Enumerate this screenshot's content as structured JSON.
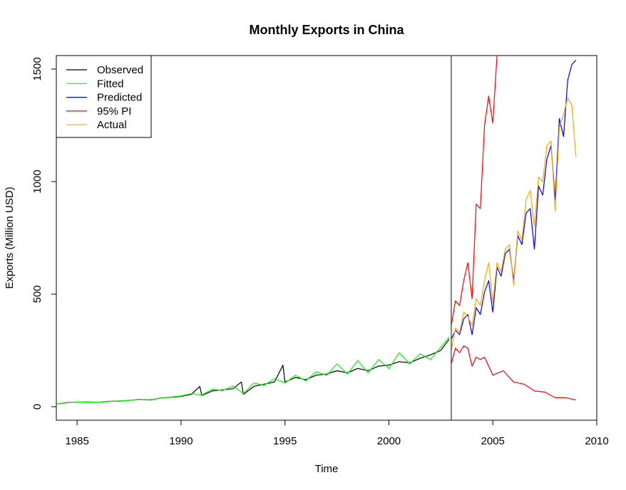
{
  "chart_data": {
    "type": "line",
    "title": "Monthly Exports in China",
    "xlabel": "Time",
    "ylabel": "Exports (Million USD)",
    "xlim": [
      1984,
      2010
    ],
    "ylim": [
      -60,
      1560
    ],
    "x_ticks": [
      "1985",
      "1990",
      "1995",
      "2000",
      "2005",
      "2010"
    ],
    "y_ticks": [
      "0",
      "500",
      "1000",
      "1500"
    ],
    "grid": false,
    "legend": "top-left",
    "forecast_start": 2003.0,
    "series": [
      {
        "name": "Observed",
        "color": "#000000",
        "x": [
          1984.0,
          1984.5,
          1985.0,
          1985.5,
          1986.0,
          1986.5,
          1987.0,
          1987.5,
          1988.0,
          1988.5,
          1989.0,
          1989.5,
          1990.0,
          1990.5,
          1990.9,
          1991.0,
          1991.5,
          1992.0,
          1992.5,
          1992.9,
          1993.0,
          1993.5,
          1994.0,
          1994.5,
          1994.9,
          1995.0,
          1995.5,
          1996.0,
          1996.5,
          1997.0,
          1997.5,
          1998.0,
          1998.5,
          1999.0,
          1999.5,
          2000.0,
          2000.5,
          2001.0,
          2001.5,
          2002.0,
          2002.5,
          2002.9
        ],
        "values": [
          12,
          18,
          20,
          21,
          19,
          24,
          25,
          28,
          32,
          30,
          38,
          42,
          46,
          55,
          90,
          50,
          70,
          75,
          80,
          110,
          55,
          90,
          100,
          110,
          185,
          110,
          130,
          120,
          140,
          145,
          160,
          150,
          170,
          160,
          180,
          185,
          200,
          195,
          215,
          230,
          250,
          300
        ]
      },
      {
        "name": "Fitted",
        "color": "#00ff00",
        "x": [
          1984.0,
          1984.5,
          1985.0,
          1985.5,
          1986.0,
          1986.5,
          1987.0,
          1987.5,
          1988.0,
          1988.5,
          1989.0,
          1989.5,
          1990.0,
          1990.5,
          1991.0,
          1991.5,
          1992.0,
          1992.5,
          1993.0,
          1993.5,
          1994.0,
          1994.5,
          1995.0,
          1995.5,
          1996.0,
          1996.5,
          1997.0,
          1997.5,
          1998.0,
          1998.5,
          1999.0,
          1999.5,
          2000.0,
          2000.5,
          2001.0,
          2001.5,
          2002.0,
          2002.5,
          2002.9
        ],
        "values": [
          12,
          17,
          20,
          22,
          19,
          23,
          26,
          28,
          31,
          31,
          37,
          43,
          48,
          58,
          52,
          78,
          72,
          92,
          58,
          105,
          95,
          125,
          105,
          140,
          115,
          155,
          140,
          190,
          145,
          205,
          150,
          210,
          170,
          240,
          190,
          235,
          210,
          265,
          310
        ]
      },
      {
        "name": "Predicted",
        "color": "#0000ff",
        "x": [
          2003.0,
          2003.2,
          2003.4,
          2003.6,
          2003.8,
          2004.0,
          2004.2,
          2004.4,
          2004.6,
          2004.8,
          2005.0,
          2005.2,
          2005.4,
          2005.6,
          2005.8,
          2006.0,
          2006.2,
          2006.4,
          2006.6,
          2006.8,
          2007.0,
          2007.2,
          2007.4,
          2007.6,
          2007.8,
          2008.0,
          2008.2,
          2008.4,
          2008.6,
          2008.8,
          2009.0
        ],
        "values": [
          300,
          340,
          320,
          390,
          410,
          320,
          440,
          410,
          510,
          560,
          420,
          620,
          580,
          680,
          700,
          560,
          760,
          720,
          860,
          880,
          700,
          980,
          940,
          1100,
          1160,
          920,
          1280,
          1200,
          1450,
          1520,
          1540
        ]
      },
      {
        "name": "95% PI",
        "color": "#ff0000",
        "x": [
          2003.0,
          2003.2,
          2003.4,
          2003.6,
          2003.8,
          2004.0,
          2004.2,
          2004.4,
          2004.6,
          2004.8,
          2005.0,
          2005.2
        ],
        "values": [
          360,
          470,
          450,
          560,
          640,
          480,
          900,
          880,
          1250,
          1380,
          1260,
          1560
        ]
      },
      {
        "name": "95% PI",
        "color": "#ff0000",
        "x": [
          2003.0,
          2003.2,
          2003.4,
          2003.6,
          2003.8,
          2004.0,
          2004.2,
          2004.4,
          2004.6,
          2004.8,
          2005.0,
          2005.5,
          2006.0,
          2006.5,
          2007.0,
          2007.5,
          2008.0,
          2008.5,
          2009.0
        ],
        "values": [
          190,
          260,
          240,
          270,
          260,
          180,
          220,
          210,
          220,
          180,
          140,
          160,
          110,
          100,
          70,
          65,
          40,
          40,
          30
        ]
      },
      {
        "name": "Actual",
        "color": "#ffa500",
        "x": [
          2003.0,
          2003.2,
          2003.4,
          2003.6,
          2003.8,
          2004.0,
          2004.2,
          2004.4,
          2004.6,
          2004.8,
          2005.0,
          2005.2,
          2005.4,
          2005.6,
          2005.8,
          2006.0,
          2006.2,
          2006.4,
          2006.6,
          2006.8,
          2007.0,
          2007.2,
          2007.4,
          2007.6,
          2007.8,
          2008.0,
          2008.2,
          2008.4,
          2008.6,
          2008.8,
          2009.0
        ],
        "values": [
          250,
          350,
          330,
          420,
          400,
          360,
          480,
          450,
          560,
          640,
          460,
          640,
          600,
          700,
          720,
          540,
          780,
          740,
          920,
          960,
          800,
          1020,
          1000,
          1160,
          1180,
          870,
          1240,
          1300,
          1370,
          1340,
          1110
        ]
      }
    ]
  },
  "legend_entries": [
    {
      "label": "Observed",
      "color": "#000000"
    },
    {
      "label": "Fitted",
      "color": "#00ff00"
    },
    {
      "label": "Predicted",
      "color": "#0000ff"
    },
    {
      "label": "95% PI",
      "color": "#ff0000"
    },
    {
      "label": "Actual",
      "color": "#ffa500"
    }
  ]
}
